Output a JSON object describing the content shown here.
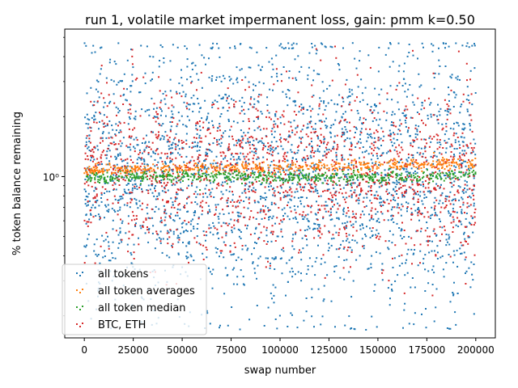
{
  "chart_data": {
    "type": "scatter",
    "title": "run 1, volatile market impermanent loss, gain: pmm k=0.50",
    "xlabel": "swap number",
    "ylabel": "% token balance remaining",
    "x_scale": "linear",
    "y_scale": "log",
    "xlim": [
      -10000,
      210000
    ],
    "ylim": [
      0.155,
      5.5
    ],
    "x_ticks": [
      0,
      25000,
      50000,
      75000,
      100000,
      125000,
      150000,
      175000,
      200000
    ],
    "x_tick_labels": [
      "0",
      "25000",
      "50000",
      "75000",
      "100000",
      "125000",
      "150000",
      "175000",
      "200000"
    ],
    "y_ticks": [
      1
    ],
    "y_tick_labels": [
      "10⁰"
    ],
    "y_minor_ticks": [
      0.2,
      0.3,
      0.4,
      0.5,
      0.6,
      0.7,
      0.8,
      0.9,
      2,
      3,
      4,
      5
    ],
    "grid": false,
    "legend_position": "lower-left",
    "series": [
      {
        "name": "all tokens",
        "color": "#1f77b4",
        "x_range": [
          0,
          200000
        ],
        "y_range": [
          0.17,
          4.7
        ],
        "center": 1.0
      },
      {
        "name": "BTC, ETH",
        "color": "#d62728",
        "x_range": [
          0,
          200000
        ],
        "y_range": [
          0.22,
          4.5
        ],
        "center": 1.05
      },
      {
        "name": "all token averages",
        "color": "#ff7f0e",
        "x_range": [
          0,
          200000
        ],
        "y_values": [
          1.06,
          1.08,
          1.09,
          1.1,
          1.1,
          1.11,
          1.11,
          1.12,
          1.13,
          1.13,
          1.14,
          1.15,
          1.16
        ]
      },
      {
        "name": "all token median",
        "color": "#2ca02c",
        "x_range": [
          0,
          200000
        ],
        "y_values": [
          0.98,
          0.99,
          1.0,
          1.0,
          1.0,
          1.0,
          0.99,
          1.0,
          1.0,
          1.0,
          0.99,
          1.01,
          1.03
        ]
      }
    ]
  }
}
